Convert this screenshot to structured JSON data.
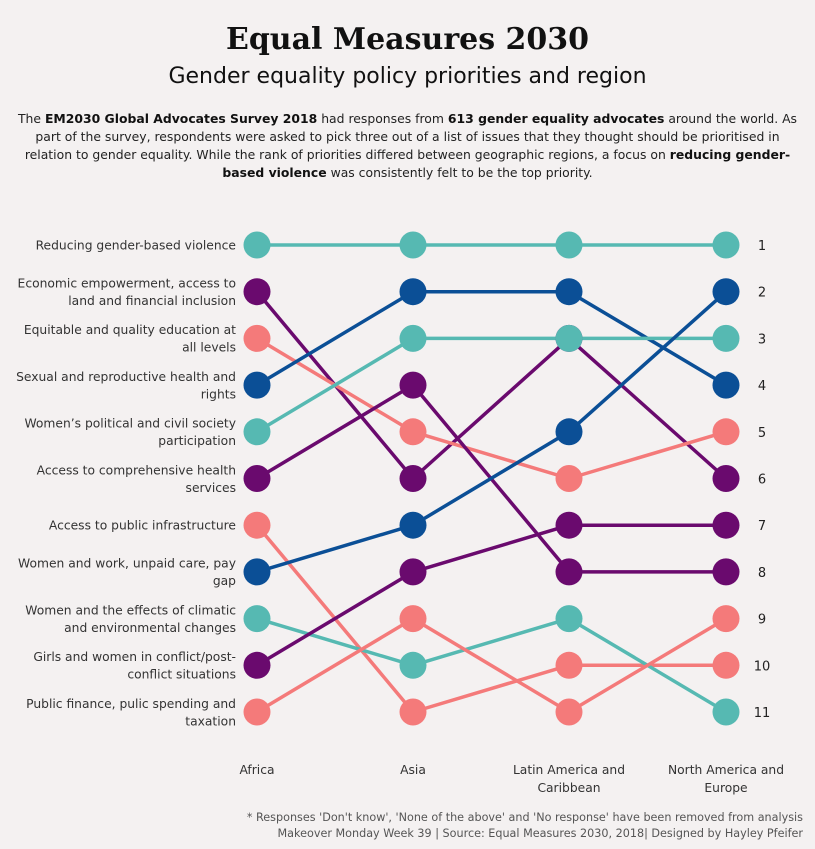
{
  "title": "Equal Measures 2030",
  "subtitle": "Gender equality policy priorities and region",
  "intro": {
    "p1": "The ",
    "b1": "EM2030 Global Advocates Survey 2018",
    "p2": " had responses from ",
    "b2": "613 gender equality advocates",
    "p3": " around the world. As part of the survey, respondents were asked to pick three out of a list of issues that they thought should be prioritised in relation to gender equality. While the rank of priorities differed between geographic regions, a focus on ",
    "b3": "reducing gender-based violence",
    "p4": " was consistently felt to be the top priority."
  },
  "chart_data": {
    "type": "line",
    "subtype": "bump",
    "x": [
      "Africa",
      "Asia",
      "Latin America and Caribbean",
      "North America and Europe"
    ],
    "x_lines": [
      [
        "Africa"
      ],
      [
        "Asia"
      ],
      [
        "Latin America and",
        "Caribbean"
      ],
      [
        "North America and",
        "Europe"
      ]
    ],
    "rank_ticks": [
      1,
      2,
      3,
      4,
      5,
      6,
      7,
      8,
      9,
      10,
      11
    ],
    "y_reversed": true,
    "series": [
      {
        "label": [
          "Reducing gender-based violence"
        ],
        "color": "#56b9b2",
        "ranks": [
          1,
          1,
          1,
          1
        ]
      },
      {
        "label": [
          "Economic empowerment, access to",
          "land and financial inclusion"
        ],
        "color": "#6a0a6e",
        "ranks": [
          2,
          6,
          3,
          6
        ]
      },
      {
        "label": [
          "Equitable and quality education at",
          "all levels"
        ],
        "color": "#f47a7a",
        "ranks": [
          3,
          5,
          6,
          5
        ]
      },
      {
        "label": [
          "Sexual and reproductive health and",
          "rights"
        ],
        "color": "#0b4f96",
        "ranks": [
          4,
          2,
          2,
          4
        ]
      },
      {
        "label": [
          "Women’s political and civil society",
          "participation"
        ],
        "color": "#56b9b2",
        "ranks": [
          5,
          3,
          3,
          3
        ]
      },
      {
        "label": [
          "Access to comprehensive health",
          "services"
        ],
        "color": "#6a0a6e",
        "ranks": [
          6,
          4,
          8,
          8
        ]
      },
      {
        "label": [
          "Access to public infrastructure"
        ],
        "color": "#f47a7a",
        "ranks": [
          7,
          11,
          10,
          10
        ]
      },
      {
        "label": [
          "Women and work, unpaid care, pay",
          "gap"
        ],
        "color": "#0b4f96",
        "ranks": [
          8,
          7,
          5,
          2
        ]
      },
      {
        "label": [
          "Women and the effects of climatic",
          "and environmental changes"
        ],
        "color": "#56b9b2",
        "ranks": [
          9,
          10,
          9,
          11
        ]
      },
      {
        "label": [
          "Girls and women in conflict/post-",
          "conflict situations"
        ],
        "color": "#6a0a6e",
        "ranks": [
          10,
          8,
          7,
          7
        ]
      },
      {
        "label": [
          "Public finance, pulic spending and",
          "taxation"
        ],
        "color": "#f47a7a",
        "ranks": [
          11,
          9,
          11,
          9
        ]
      }
    ]
  },
  "footnote": {
    "line1": "* Responses 'Don't know', 'None of the above' and 'No response' have been removed from analysis",
    "line2": "Makeover Monday Week 39 | Source: Equal Measures 2030, 2018| Designed by Hayley Pfeifer"
  }
}
